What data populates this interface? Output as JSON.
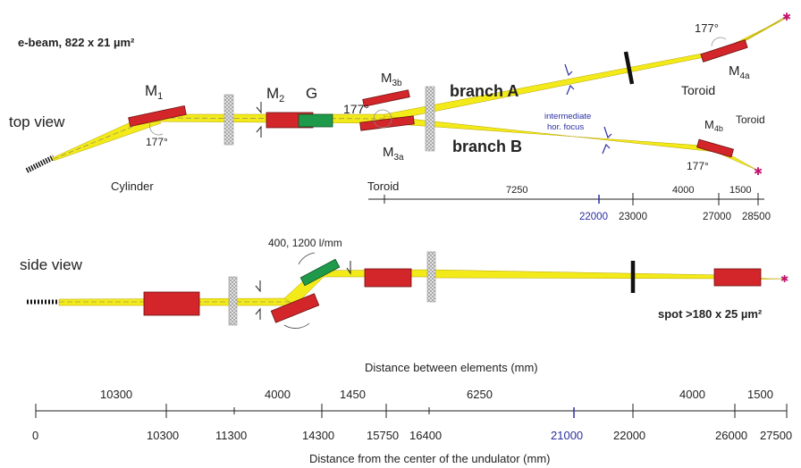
{
  "header": {
    "ebeam": "e-beam, 822 x 21 µm²",
    "top_view": "top view",
    "side_view": "side view",
    "spot": "spot >180 x 25 µm²"
  },
  "top": {
    "m1_main": "M",
    "m1_sub": "1",
    "m2_main": "M",
    "m2_sub": "2",
    "grating": "G",
    "m3b_main": "M",
    "m3b_sub": "3b",
    "m3a_main": "M",
    "m3a_sub": "3a",
    "m4a_main": "M",
    "m4a_sub": "4a",
    "m4b_main": "M",
    "m4b_sub": "4b",
    "angle_m1": "177°",
    "angle_m3": "177°",
    "angle_m4a": "177°",
    "angle_m4b": "177°",
    "branch_a": "branch A",
    "branch_b": "branch B",
    "intermediate": "intermediate",
    "hor_focus": "hor. focus",
    "toroid_a": "Toroid",
    "toroid_b": "Toroid",
    "toroid_m3": "Toroid",
    "cylinder": "Cylinder"
  },
  "top_axis": {
    "dist_7250": "7250",
    "dist_4000": "4000",
    "dist_1500": "1500",
    "tick_22000": "22000",
    "tick_23000": "23000",
    "tick_27000": "27000",
    "tick_28500": "28500"
  },
  "side": {
    "grating_label": "400, 1200 l/mm"
  },
  "bottom_axis": {
    "title_between": "Distance between elements (mm)",
    "title_from": "Distance from the center of the undulator (mm)",
    "seg_10300": "10300",
    "seg_4000a": "4000",
    "seg_1450": "1450",
    "seg_6250": "6250",
    "seg_4000b": "4000",
    "seg_1500": "1500",
    "tick_0": "0",
    "tick_10300": "10300",
    "tick_11300": "11300",
    "tick_14300": "14300",
    "tick_15750": "15750",
    "tick_16400": "16400",
    "tick_21000": "21000",
    "tick_22000": "22000",
    "tick_26000": "26000",
    "tick_27500": "27500"
  },
  "colors": {
    "beam": "#f3ea1a",
    "mirror": "#d3262a",
    "grating": "#1f9a4a",
    "focus_blue": "#2a2fa0"
  }
}
